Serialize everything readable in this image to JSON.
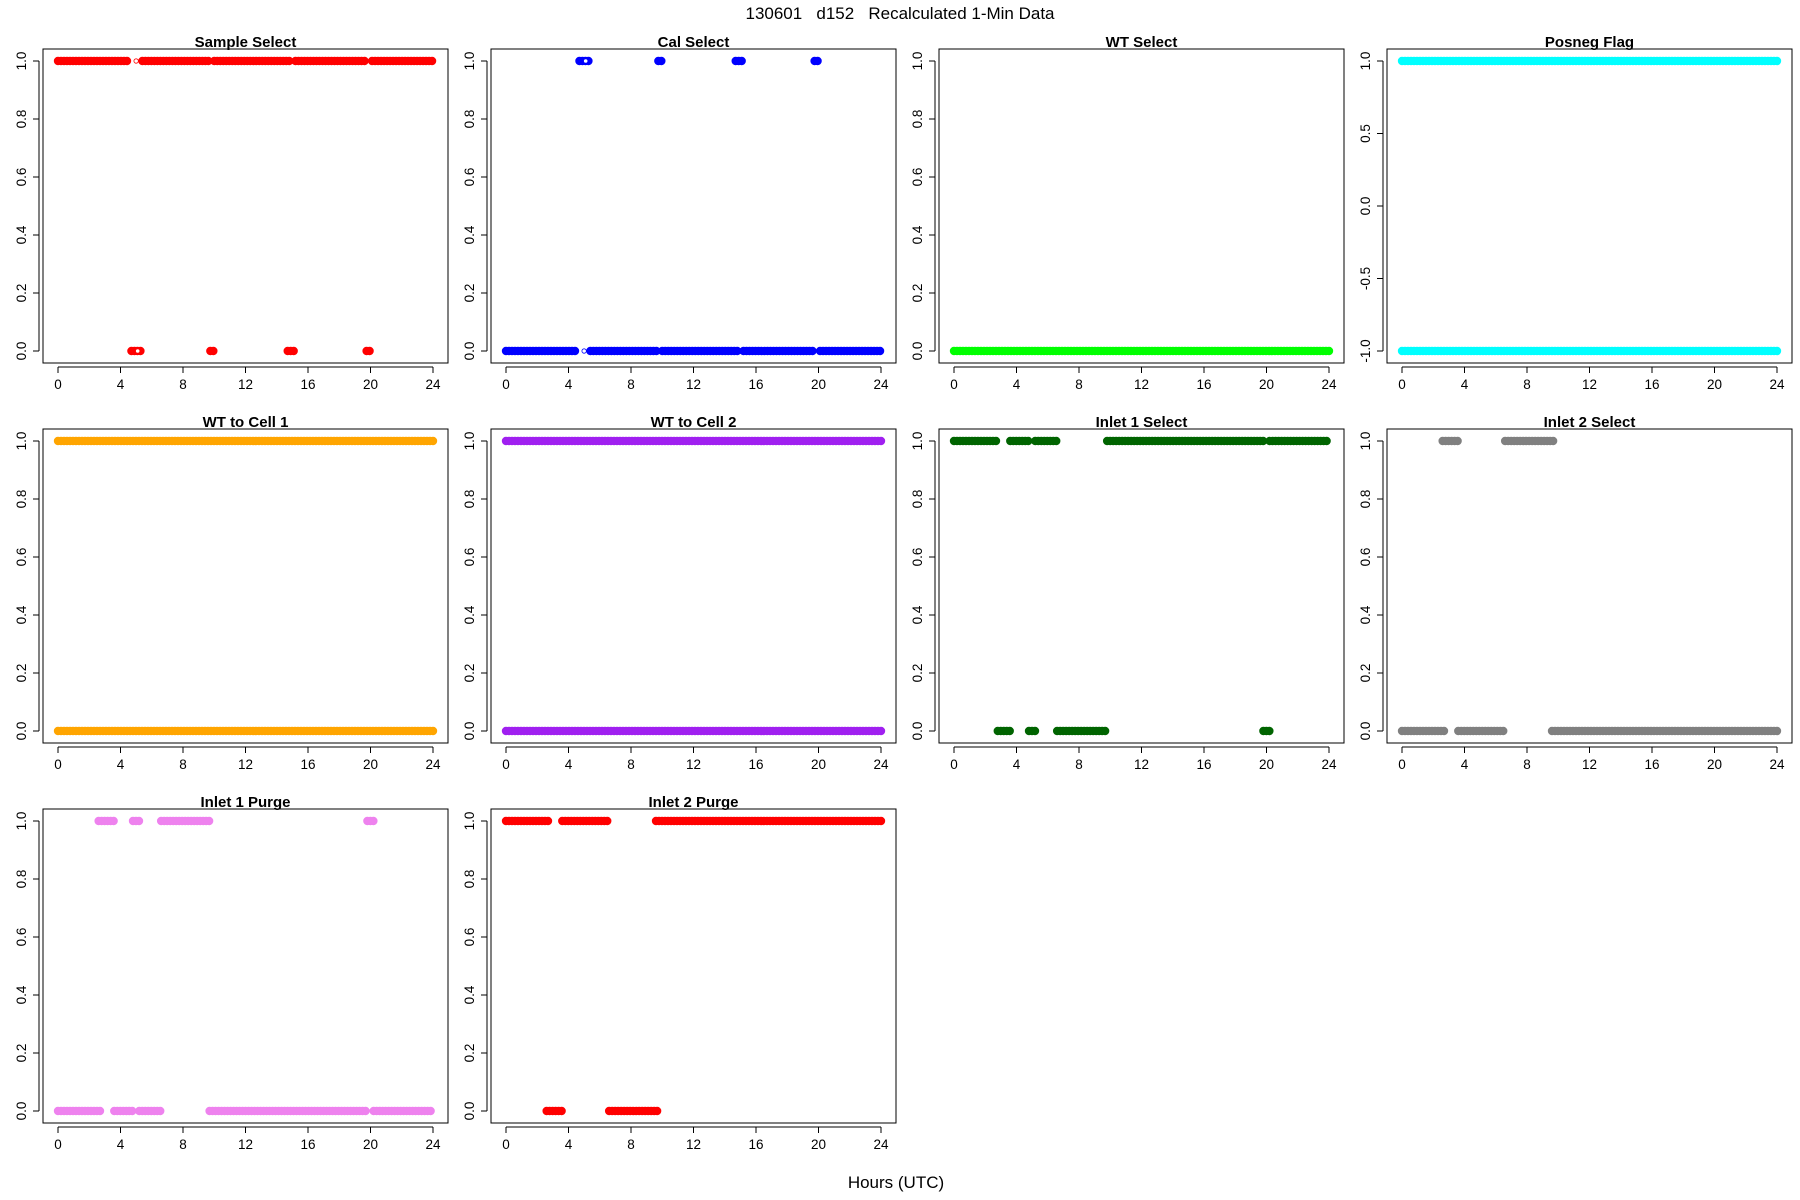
{
  "figure": {
    "title": "130601   d152   Recalculated 1-Min Data",
    "xlabel": "Hours (UTC)"
  },
  "chart_data": [
    {
      "type": "scatter",
      "title": "Sample Select",
      "color": "#ff0000",
      "xlim": [
        0,
        24
      ],
      "ylim": [
        0,
        1
      ],
      "xticks": [
        0,
        4,
        8,
        12,
        16,
        20,
        24
      ],
      "yticks": [
        0.0,
        0.2,
        0.4,
        0.6,
        0.8,
        1.0
      ],
      "ytick_labels": [
        "0.0",
        "0.2",
        "0.4",
        "0.6",
        "0.8",
        "1.0"
      ],
      "segments": [
        {
          "y": 1,
          "x": [
            0.0,
            4.6
          ]
        },
        {
          "y": 1,
          "x": [
            5.4,
            9.7
          ]
        },
        {
          "y": 1,
          "x": [
            10.0,
            14.8
          ]
        },
        {
          "y": 1,
          "x": [
            15.2,
            19.8
          ]
        },
        {
          "y": 1,
          "x": [
            20.1,
            24.0
          ]
        },
        {
          "y": 0,
          "x": [
            4.7,
            5.3
          ]
        },
        {
          "y": 0,
          "x": [
            9.75,
            10.05
          ]
        },
        {
          "y": 0,
          "x": [
            14.7,
            15.1
          ]
        },
        {
          "y": 0,
          "x": [
            19.75,
            20.05
          ]
        }
      ],
      "open_points": [
        {
          "x": 5.0,
          "y": 1
        },
        {
          "x": 5.1,
          "y": 0
        }
      ]
    },
    {
      "type": "scatter",
      "title": "Cal Select",
      "color": "#0000ff",
      "xlim": [
        0,
        24
      ],
      "ylim": [
        0,
        1
      ],
      "xticks": [
        0,
        4,
        8,
        12,
        16,
        20,
        24
      ],
      "yticks": [
        0.0,
        0.2,
        0.4,
        0.6,
        0.8,
        1.0
      ],
      "ytick_labels": [
        "0.0",
        "0.2",
        "0.4",
        "0.6",
        "0.8",
        "1.0"
      ],
      "segments": [
        {
          "y": 0,
          "x": [
            0.0,
            4.6
          ]
        },
        {
          "y": 0,
          "x": [
            5.4,
            9.7
          ]
        },
        {
          "y": 0,
          "x": [
            10.0,
            14.8
          ]
        },
        {
          "y": 0,
          "x": [
            15.2,
            19.8
          ]
        },
        {
          "y": 0,
          "x": [
            20.1,
            24.0
          ]
        },
        {
          "y": 1,
          "x": [
            4.7,
            5.3
          ]
        },
        {
          "y": 1,
          "x": [
            9.75,
            10.05
          ]
        },
        {
          "y": 1,
          "x": [
            14.7,
            15.1
          ]
        },
        {
          "y": 1,
          "x": [
            19.75,
            20.05
          ]
        }
      ],
      "open_points": [
        {
          "x": 5.1,
          "y": 1
        },
        {
          "x": 5.0,
          "y": 0
        }
      ]
    },
    {
      "type": "scatter",
      "title": "WT Select",
      "color": "#00ff00",
      "xlim": [
        0,
        24
      ],
      "ylim": [
        0,
        1
      ],
      "xticks": [
        0,
        4,
        8,
        12,
        16,
        20,
        24
      ],
      "yticks": [
        0.0,
        0.2,
        0.4,
        0.6,
        0.8,
        1.0
      ],
      "ytick_labels": [
        "0.0",
        "0.2",
        "0.4",
        "0.6",
        "0.8",
        "1.0"
      ],
      "segments": [
        {
          "y": 0,
          "x": [
            0.0,
            24.0
          ]
        }
      ],
      "open_points": []
    },
    {
      "type": "scatter",
      "title": "Posneg Flag",
      "color": "#00ffff",
      "xlim": [
        0,
        24
      ],
      "ylim": [
        -1,
        1
      ],
      "xticks": [
        0,
        4,
        8,
        12,
        16,
        20,
        24
      ],
      "yticks": [
        -1.0,
        -0.5,
        0.0,
        0.5,
        1.0
      ],
      "ytick_labels": [
        "-1.0",
        "-0.5",
        "0.0",
        "0.5",
        "1.0"
      ],
      "segments": [
        {
          "y": 1,
          "x": [
            0.0,
            24.0
          ]
        },
        {
          "y": -1,
          "x": [
            0.0,
            24.0
          ]
        }
      ],
      "open_points": []
    },
    {
      "type": "scatter",
      "title": "WT to Cell 1",
      "color": "#ffa500",
      "xlim": [
        0,
        24
      ],
      "ylim": [
        0,
        1
      ],
      "xticks": [
        0,
        4,
        8,
        12,
        16,
        20,
        24
      ],
      "yticks": [
        0.0,
        0.2,
        0.4,
        0.6,
        0.8,
        1.0
      ],
      "ytick_labels": [
        "0.0",
        "0.2",
        "0.4",
        "0.6",
        "0.8",
        "1.0"
      ],
      "segments": [
        {
          "y": 1,
          "x": [
            0.0,
            24.0
          ]
        },
        {
          "y": 0,
          "x": [
            0.0,
            24.0
          ]
        }
      ],
      "open_points": []
    },
    {
      "type": "scatter",
      "title": "WT to Cell 2",
      "color": "#a020f0",
      "xlim": [
        0,
        24
      ],
      "ylim": [
        0,
        1
      ],
      "xticks": [
        0,
        4,
        8,
        12,
        16,
        20,
        24
      ],
      "yticks": [
        0.0,
        0.2,
        0.4,
        0.6,
        0.8,
        1.0
      ],
      "ytick_labels": [
        "0.0",
        "0.2",
        "0.4",
        "0.6",
        "0.8",
        "1.0"
      ],
      "segments": [
        {
          "y": 1,
          "x": [
            0.0,
            24.0
          ]
        },
        {
          "y": 0,
          "x": [
            0.0,
            24.0
          ]
        }
      ],
      "open_points": []
    },
    {
      "type": "scatter",
      "title": "Inlet 1 Select",
      "color": "#006400",
      "xlim": [
        0,
        24
      ],
      "ylim": [
        0,
        1
      ],
      "xticks": [
        0,
        4,
        8,
        12,
        16,
        20,
        24
      ],
      "yticks": [
        0.0,
        0.2,
        0.4,
        0.6,
        0.8,
        1.0
      ],
      "ytick_labels": [
        "0.0",
        "0.2",
        "0.4",
        "0.6",
        "0.8",
        "1.0"
      ],
      "segments": [
        {
          "y": 1,
          "x": [
            0.0,
            2.7
          ]
        },
        {
          "y": 1,
          "x": [
            3.6,
            4.9
          ]
        },
        {
          "y": 1,
          "x": [
            5.2,
            6.6
          ]
        },
        {
          "y": 1,
          "x": [
            9.8,
            19.8
          ]
        },
        {
          "y": 1,
          "x": [
            20.2,
            24.0
          ]
        },
        {
          "y": 0,
          "x": [
            2.8,
            3.7
          ]
        },
        {
          "y": 0,
          "x": [
            4.8,
            5.2
          ]
        },
        {
          "y": 0,
          "x": [
            6.6,
            9.7
          ]
        },
        {
          "y": 0,
          "x": [
            19.8,
            20.2
          ]
        }
      ],
      "open_points": []
    },
    {
      "type": "scatter",
      "title": "Inlet 2 Select",
      "color": "#808080",
      "xlim": [
        0,
        24
      ],
      "ylim": [
        0,
        1
      ],
      "xticks": [
        0,
        4,
        8,
        12,
        16,
        20,
        24
      ],
      "yticks": [
        0.0,
        0.2,
        0.4,
        0.6,
        0.8,
        1.0
      ],
      "ytick_labels": [
        "0.0",
        "0.2",
        "0.4",
        "0.6",
        "0.8",
        "1.0"
      ],
      "segments": [
        {
          "y": 1,
          "x": [
            2.6,
            3.7
          ]
        },
        {
          "y": 1,
          "x": [
            6.6,
            9.7
          ]
        },
        {
          "y": 0,
          "x": [
            0.0,
            2.7
          ]
        },
        {
          "y": 0,
          "x": [
            3.6,
            6.5
          ]
        },
        {
          "y": 0,
          "x": [
            9.6,
            24.0
          ]
        }
      ],
      "open_points": []
    },
    {
      "type": "scatter",
      "title": "Inlet 1 Purge",
      "color": "#ee82ee",
      "xlim": [
        0,
        24
      ],
      "ylim": [
        0,
        1
      ],
      "xticks": [
        0,
        4,
        8,
        12,
        16,
        20,
        24
      ],
      "yticks": [
        0.0,
        0.2,
        0.4,
        0.6,
        0.8,
        1.0
      ],
      "ytick_labels": [
        "0.0",
        "0.2",
        "0.4",
        "0.6",
        "0.8",
        "1.0"
      ],
      "segments": [
        {
          "y": 1,
          "x": [
            2.6,
            3.7
          ]
        },
        {
          "y": 1,
          "x": [
            4.8,
            5.3
          ]
        },
        {
          "y": 1,
          "x": [
            6.6,
            9.7
          ]
        },
        {
          "y": 1,
          "x": [
            19.8,
            20.3
          ]
        },
        {
          "y": 0,
          "x": [
            0.0,
            2.7
          ]
        },
        {
          "y": 0,
          "x": [
            3.6,
            4.9
          ]
        },
        {
          "y": 0,
          "x": [
            5.2,
            6.6
          ]
        },
        {
          "y": 0,
          "x": [
            9.7,
            19.8
          ]
        },
        {
          "y": 0,
          "x": [
            20.2,
            24.0
          ]
        }
      ],
      "open_points": []
    },
    {
      "type": "scatter",
      "title": "Inlet 2 Purge",
      "color": "#ff0000",
      "xlim": [
        0,
        24
      ],
      "ylim": [
        0,
        1
      ],
      "xticks": [
        0,
        4,
        8,
        12,
        16,
        20,
        24
      ],
      "yticks": [
        0.0,
        0.2,
        0.4,
        0.6,
        0.8,
        1.0
      ],
      "ytick_labels": [
        "0.0",
        "0.2",
        "0.4",
        "0.6",
        "0.8",
        "1.0"
      ],
      "segments": [
        {
          "y": 1,
          "x": [
            0.0,
            2.7
          ]
        },
        {
          "y": 1,
          "x": [
            3.6,
            6.6
          ]
        },
        {
          "y": 1,
          "x": [
            9.6,
            24.0
          ]
        },
        {
          "y": 0,
          "x": [
            2.6,
            3.7
          ]
        },
        {
          "y": 0,
          "x": [
            6.6,
            9.7
          ]
        }
      ],
      "open_points": []
    }
  ]
}
